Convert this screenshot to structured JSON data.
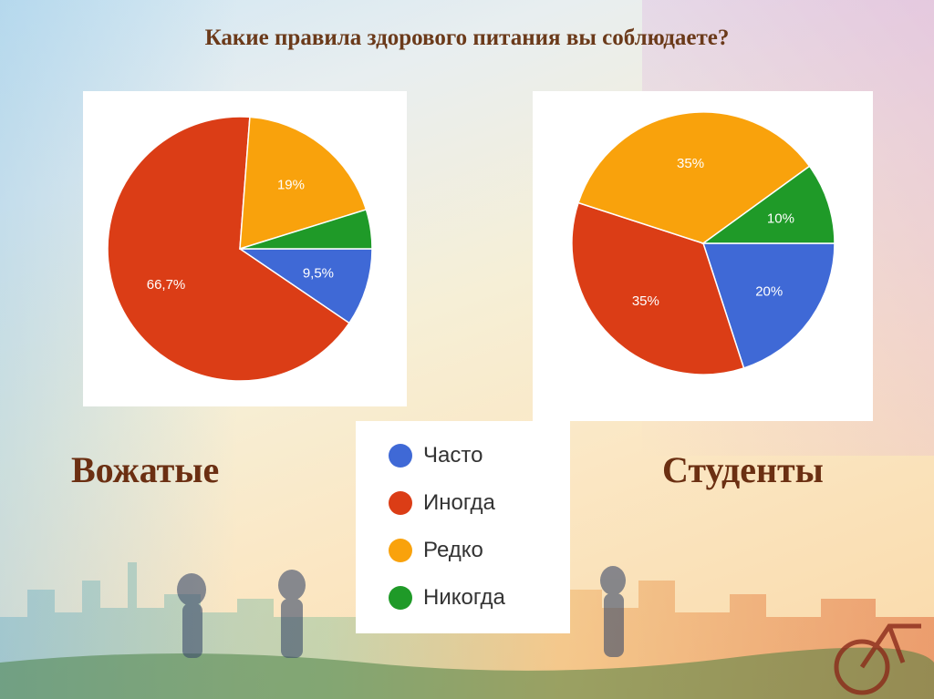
{
  "title": "Какие правила здорового питания вы соблюдаете?",
  "chart_data": [
    {
      "type": "pie",
      "group_label": "Вожатые",
      "categories": [
        "Часто",
        "Иногда",
        "Редко",
        "Никогда"
      ],
      "values": [
        9.5,
        66.7,
        19,
        4.8
      ],
      "data_labels": [
        "9,5%",
        "66,7%",
        "19%",
        ""
      ]
    },
    {
      "type": "pie",
      "group_label": "Студенты",
      "categories": [
        "Часто",
        "Иногда",
        "Редко",
        "Никогда"
      ],
      "values": [
        20,
        35,
        35,
        10
      ],
      "data_labels": [
        "20%",
        "35%",
        "35%",
        "10%"
      ]
    }
  ],
  "legend": [
    {
      "label": "Часто",
      "color": "#3f69d6"
    },
    {
      "label": "Иногда",
      "color": "#db3d16"
    },
    {
      "label": "Редко",
      "color": "#f9a20c"
    },
    {
      "label": "Никогда",
      "color": "#1f9a28"
    }
  ],
  "labels": {
    "left": "Вожатые",
    "right": "Студенты"
  }
}
